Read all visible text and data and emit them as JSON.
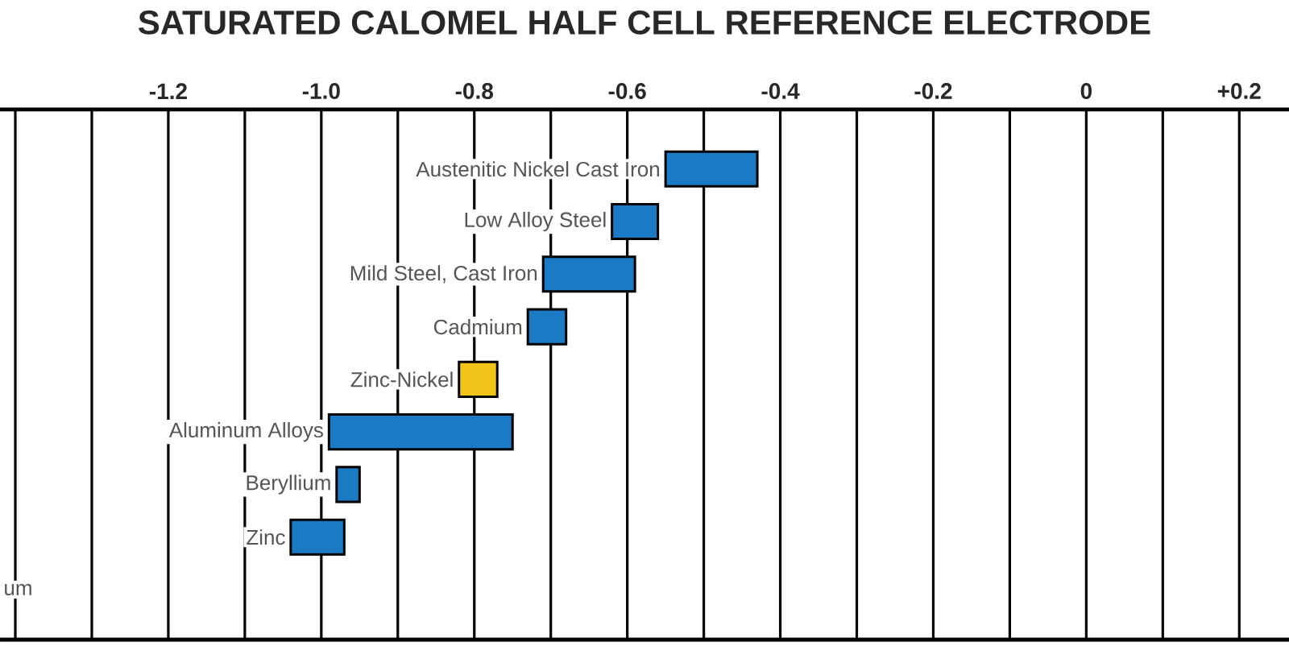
{
  "chart_data": {
    "type": "bar",
    "orientation": "horizontal",
    "title": "SATURATED CALOMEL HALF CELL REFERENCE ELECTRODE",
    "categories": [
      "Austenitic Nickel Cast Iron",
      "Low Alloy Steel",
      "Mild Steel, Cast Iron",
      "Cadmium",
      "Zinc-Nickel",
      "Aluminum Alloys",
      "Beryllium",
      "Zinc",
      "um"
    ],
    "base": [
      -0.55,
      -0.62,
      -0.71,
      -0.73,
      -0.82,
      -0.99,
      -0.98,
      -1.04,
      null
    ],
    "values": [
      0.12,
      0.06,
      0.12,
      0.05,
      0.05,
      0.24,
      0.03,
      0.07,
      null
    ],
    "colors": [
      "#1a7ac4",
      "#1a7ac4",
      "#1a7ac4",
      "#1a7ac4",
      "#f2c318",
      "#1a7ac4",
      "#1a7ac4",
      "#1a7ac4",
      "#1a7ac4"
    ],
    "xlim": [
      -1.42,
      0.265
    ],
    "xticks": [
      {
        "value": -1.4,
        "label": null
      },
      {
        "value": -1.3,
        "label": null
      },
      {
        "value": -1.2,
        "label": "-1.2"
      },
      {
        "value": -1.1,
        "label": null
      },
      {
        "value": -1.0,
        "label": "-1.0"
      },
      {
        "value": -0.9,
        "label": null
      },
      {
        "value": -0.8,
        "label": "-0.8"
      },
      {
        "value": -0.7,
        "label": null
      },
      {
        "value": -0.6,
        "label": "-0.6"
      },
      {
        "value": -0.5,
        "label": null
      },
      {
        "value": -0.4,
        "label": "-0.4"
      },
      {
        "value": -0.3,
        "label": null
      },
      {
        "value": -0.2,
        "label": "-0.2"
      },
      {
        "value": -0.1,
        "label": null
      },
      {
        "value": 0,
        "label": "0"
      },
      {
        "value": 0.1,
        "label": null
      },
      {
        "value": 0.2,
        "label": "+0.2"
      }
    ],
    "grid": "x",
    "legend": false
  }
}
